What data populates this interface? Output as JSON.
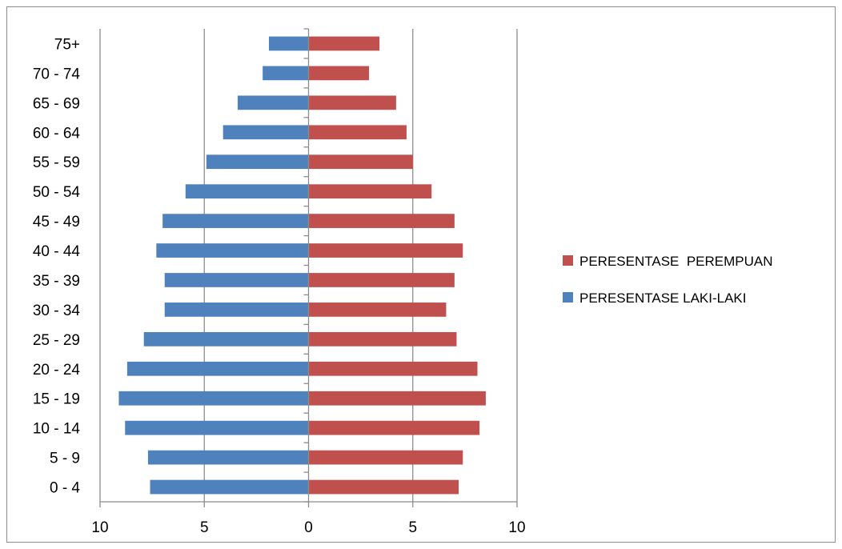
{
  "chart_data": {
    "type": "bar",
    "orientation": "horizontal",
    "layout": "population-pyramid",
    "title": "",
    "xlabel": "",
    "ylabel": "",
    "categories": [
      "0 - 4",
      "5 - 9",
      "10 - 14",
      "15 - 19",
      "20 - 24",
      "25 - 29",
      "30 - 34",
      "35 - 39",
      "40 - 44",
      "45 - 49",
      "50 - 54",
      "55 - 59",
      "60 - 64",
      "65 - 69",
      "70 - 74",
      "75+"
    ],
    "series": [
      {
        "name": "PERESENTASE  PEREMPUAN",
        "color": "#c0504d",
        "direction": "right",
        "values": [
          7.2,
          7.4,
          8.2,
          8.5,
          8.1,
          7.1,
          6.6,
          7.0,
          7.4,
          7.0,
          5.9,
          5.0,
          4.7,
          4.2,
          2.9,
          3.4
        ]
      },
      {
        "name": "PERESENTASE LAKI-LAKI",
        "color": "#4f81bd",
        "direction": "left",
        "values": [
          7.6,
          7.7,
          8.8,
          9.1,
          8.7,
          7.9,
          6.9,
          6.9,
          7.3,
          7.0,
          5.9,
          4.9,
          4.1,
          3.4,
          2.2,
          1.9
        ]
      }
    ],
    "xlim": [
      -10,
      10
    ],
    "xticks": [
      -10,
      -5,
      0,
      5,
      10
    ],
    "xtick_labels": [
      "10",
      "5",
      "0",
      "5",
      "10"
    ],
    "grid": "vertical major gridlines",
    "legend_position": "right"
  }
}
